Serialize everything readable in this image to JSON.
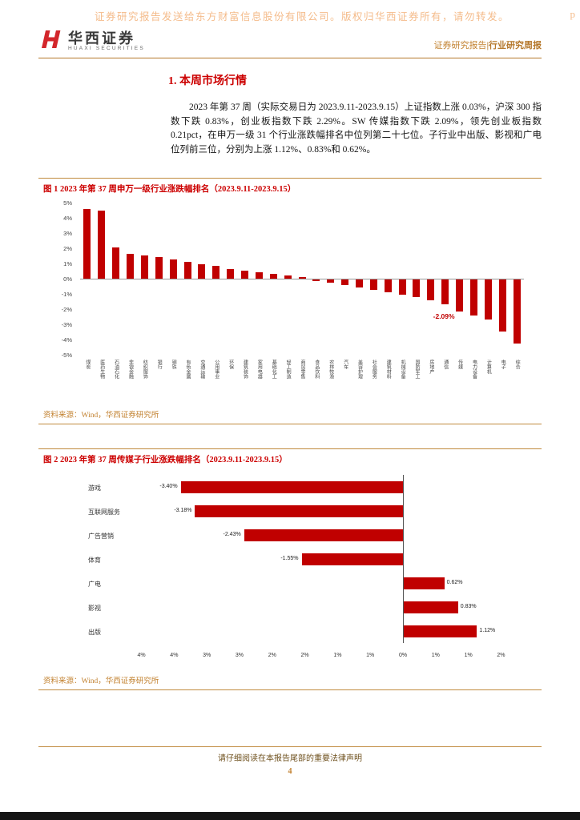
{
  "watermark": {
    "text": "证券研究报告发送给东方财富信息股份有限公司。版权归华西证券所有，请勿转发。",
    "suffix": "p"
  },
  "header": {
    "logo_title": "华西证券",
    "logo_subtitle": "HUAXI SECURITIES",
    "report_type": "证券研究报告",
    "separator": "|",
    "report_category": "行业研究周报"
  },
  "section": {
    "title": "1. 本周市场行情",
    "paragraph": "2023 年第 37 周（实际交易日为 2023.9.11-2023.9.15）上证指数上涨 0.03%，沪深 300 指数下跌 0.83%，创业板指数下跌 2.29%。SW 传媒指数下跌 2.09%，领先创业板指数 0.21pct，在申万一级 31 个行业涨跌幅排名中位列第二十七位。子行业中出版、影视和广电位列前三位，分别为上涨 1.12%、0.83%和 0.62%。"
  },
  "figure1": {
    "caption": "图 1 2023 年第 37 周申万一级行业涨跌幅排名（2023.9.11-2023.9.15）",
    "source": "资料来源：Wind，华西证券研究所"
  },
  "figure2": {
    "caption": "图 2 2023 年第 37 周传媒子行业涨跌幅排名（2023.9.11-2023.9.15）",
    "source": "资料来源：Wind，华西证券研究所"
  },
  "footer": {
    "notice": "请仔细阅读在本报告尾部的重要法律声明",
    "page_number": "4"
  },
  "colors": {
    "bar_red": "#c00000",
    "caption_red": "#cc0000",
    "accent_orange": "#b5772a",
    "source_orange": "#c2812f",
    "watermark_orange": "#f2ab6e"
  },
  "chart_data": [
    {
      "type": "bar",
      "orientation": "vertical",
      "title": "",
      "xlabel": "",
      "ylabel": "",
      "categories": [
        "煤炭",
        "医药生物",
        "石油石化",
        "非银金融",
        "纺织服饰",
        "银行",
        "钢铁",
        "有色金属",
        "交通运输",
        "公用事业",
        "环保",
        "建筑装饰",
        "家用电器",
        "基础化工",
        "轻工制造",
        "商贸零售",
        "食品饮料",
        "农林牧渔",
        "汽车",
        "美容护理",
        "社会服务",
        "建筑材料",
        "机械设备",
        "国防军工",
        "房地产",
        "通信",
        "传媒",
        "电力设备",
        "计算机",
        "电子",
        "综合"
      ],
      "values": [
        4.6,
        4.48,
        2.05,
        1.62,
        1.52,
        1.4,
        1.28,
        1.08,
        0.95,
        0.82,
        0.65,
        0.52,
        0.42,
        0.32,
        0.22,
        0.1,
        -0.08,
        -0.2,
        -0.35,
        -0.5,
        -0.68,
        -0.85,
        -1.0,
        -1.18,
        -1.38,
        -1.62,
        -2.09,
        -2.35,
        -2.65,
        -3.4,
        -4.2
      ],
      "ylim": [
        -5,
        5
      ],
      "ytick_labels": [
        "5%",
        "4%",
        "3%",
        "2%",
        "1%",
        "0%",
        "-1%",
        "-2%",
        "-3%",
        "-4%",
        "-5%"
      ],
      "annotation": {
        "text": "-2.09%",
        "category": "传媒",
        "index": 26
      },
      "bar_color": "#c00000",
      "grid": "off",
      "legend": "off"
    },
    {
      "type": "bar",
      "orientation": "horizontal",
      "title": "",
      "xlabel": "",
      "ylabel": "",
      "categories": [
        "游戏",
        "互联网服务",
        "广告营销",
        "体育",
        "广电",
        "影视",
        "出版"
      ],
      "values": [
        -3.4,
        -3.18,
        -2.43,
        -1.55,
        0.62,
        0.83,
        1.12
      ],
      "value_labels": [
        "-3.40%",
        "-3.18%",
        "-2.43%",
        "-1.55%",
        "0.62%",
        "0.83%",
        "1.12%"
      ],
      "xlim": [
        -4.35,
        1.85
      ],
      "xticks": [
        -4,
        -3.5,
        -3,
        -2.5,
        -2,
        -1.5,
        -1,
        -0.5,
        0,
        0.5,
        1,
        1.5
      ],
      "xtick_labels": [
        "4%",
        "4%",
        "3%",
        "3%",
        "2%",
        "2%",
        "1%",
        "1%",
        "0%",
        "1%",
        "1%",
        "2%"
      ],
      "bar_color": "#c00000",
      "grid": "off",
      "legend": "off"
    }
  ]
}
